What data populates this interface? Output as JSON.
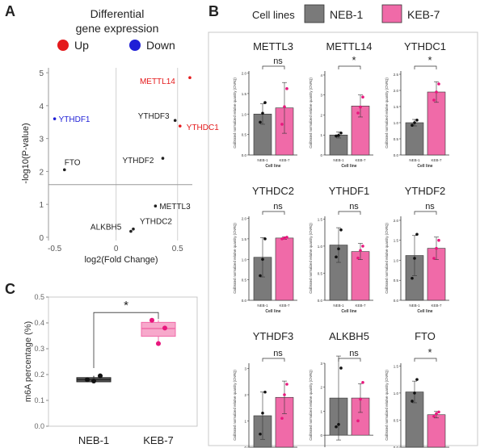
{
  "panels": {
    "A": "A",
    "B": "B",
    "C": "C"
  },
  "colors": {
    "up": "#e41a1c",
    "down": "#1f1fd6",
    "neb": "#7a7a7a",
    "keb": "#f06aa8",
    "keb_light": "#f7a8cb",
    "dot_keb": "#e8177d",
    "gray_box": "#6b6b6b"
  },
  "chart_data": [
    {
      "panel": "A",
      "type": "scatter",
      "title": "Differential gene expression",
      "legend": [
        {
          "label": "Up",
          "color": "#e41a1c"
        },
        {
          "label": "Down",
          "color": "#1f1fd6"
        }
      ],
      "xlabel": "log2(Fold Change)",
      "ylabel": "-log10(P-value)",
      "xticks": [
        -0.5,
        0,
        0.5
      ],
      "yticks": [
        0,
        1,
        2,
        3,
        4,
        5
      ],
      "xlim": [
        -0.55,
        0.62
      ],
      "ylim": [
        -0.1,
        5.15
      ],
      "axis_break": "y",
      "points": [
        {
          "label": "METTL14",
          "x": 0.6,
          "y": 4.85,
          "group": "up"
        },
        {
          "label": "YTHDC1",
          "x": 0.52,
          "y": 3.38,
          "group": "up"
        },
        {
          "label": "YTHDF1",
          "x": -0.5,
          "y": 3.6,
          "group": "down"
        },
        {
          "label": "YTHDF3",
          "x": 0.48,
          "y": 3.55,
          "group": "ns"
        },
        {
          "label": "YTHDF2",
          "x": 0.38,
          "y": 2.4,
          "group": "ns"
        },
        {
          "label": "FTO",
          "x": -0.42,
          "y": 2.05,
          "group": "ns"
        },
        {
          "label": "METTL3",
          "x": 0.32,
          "y": 0.95,
          "group": "ns"
        },
        {
          "label": "ALKBH5",
          "x": 0.12,
          "y": 0.18,
          "group": "ns"
        },
        {
          "label": "YTHDC2",
          "x": 0.14,
          "y": 0.25,
          "group": "ns"
        }
      ]
    },
    {
      "panel": "B",
      "type": "bar",
      "legend_title": "Cell lines",
      "series": [
        {
          "name": "NEB-1",
          "color": "#7a7a7a"
        },
        {
          "name": "KEB-7",
          "color": "#f06aa8"
        }
      ],
      "xlabel": "Cell line",
      "ylabel": "Calibrated normalized relative quantity (CNRQ)",
      "categories": [
        "NEB-1",
        "KEB-7"
      ],
      "subplots": [
        {
          "title": "METTL3",
          "ymax": 2.05,
          "yticks": [
            "0.0",
            "0.5",
            "1.0",
            "1.5",
            "2.0"
          ],
          "values": [
            1.0,
            1.15
          ],
          "sd": [
            0.25,
            0.62
          ],
          "points": [
            [
              0.8,
              1.02,
              1.28
            ],
            [
              0.75,
              1.18,
              1.62
            ]
          ],
          "sig": "ns"
        },
        {
          "title": "METTL14",
          "ymax": 4.2,
          "yticks": [
            "0",
            "1",
            "2",
            "3",
            "4"
          ],
          "values": [
            1.0,
            2.45
          ],
          "sd": [
            0.15,
            0.55
          ],
          "points": [
            [
              0.95,
              0.98,
              1.1
            ],
            [
              2.1,
              2.4,
              2.9
            ]
          ],
          "sig": "*"
        },
        {
          "title": "YTHDC1",
          "ymax": 2.6,
          "yticks": [
            "0.0",
            "0.5",
            "1.0",
            "1.5",
            "2.0",
            "2.5"
          ],
          "values": [
            1.0,
            1.95
          ],
          "sd": [
            0.1,
            0.32
          ],
          "points": [
            [
              0.92,
              1.0,
              1.08
            ],
            [
              1.7,
              1.95,
              2.2
            ]
          ],
          "sig": "*"
        },
        {
          "title": "YTHDC2",
          "ymax": 2.05,
          "yticks": [
            "0.0",
            "0.5",
            "1.0",
            "1.5",
            "2.0"
          ],
          "values": [
            1.05,
            1.52
          ],
          "sd": [
            0.48,
            0.03
          ],
          "points": [
            [
              0.6,
              1.0,
              1.5
            ],
            [
              1.5,
              1.52,
              1.54
            ]
          ],
          "sig": "ns"
        },
        {
          "title": "YTHDF1",
          "ymax": 1.55,
          "yticks": [
            "0.0",
            "0.5",
            "1.0",
            "1.5"
          ],
          "values": [
            1.02,
            0.9
          ],
          "sd": [
            0.32,
            0.15
          ],
          "points": [
            [
              0.8,
              0.95,
              1.3
            ],
            [
              0.78,
              0.92,
              1.0
            ]
          ],
          "sig": "ns"
        },
        {
          "title": "YTHDF2",
          "ymax": 2.1,
          "yticks": [
            "0.0",
            "0.5",
            "1.0",
            "1.5",
            "2.0"
          ],
          "values": [
            1.12,
            1.3
          ],
          "sd": [
            0.5,
            0.28
          ],
          "points": [
            [
              0.55,
              1.05,
              1.65
            ],
            [
              1.05,
              1.3,
              1.5
            ]
          ],
          "sig": "ns"
        },
        {
          "title": "YTHDF3",
          "ymax": 3.2,
          "yticks": [
            "0",
            "1",
            "2",
            "3"
          ],
          "values": [
            1.2,
            1.9
          ],
          "sd": [
            0.9,
            0.62
          ],
          "points": [
            [
              0.5,
              1.3,
              2.1
            ],
            [
              1.1,
              2.0,
              2.4
            ]
          ],
          "sig": "ns"
        },
        {
          "title": "ALKBH5",
          "ymax": 3.0,
          "ymin": -0.5,
          "yticks": [
            "0",
            "1",
            "2",
            "3"
          ],
          "values": [
            1.55,
            1.55
          ],
          "sd": [
            1.75,
            0.6
          ],
          "points": [
            [
              0.35,
              0.45,
              2.8
            ],
            [
              0.6,
              1.5,
              2.2
            ]
          ],
          "sig": "ns"
        },
        {
          "title": "FTO",
          "ymax": 1.55,
          "yticks": [
            "0.0",
            "0.5",
            "1.0",
            "1.5"
          ],
          "values": [
            1.02,
            0.6
          ],
          "sd": [
            0.2,
            0.06
          ],
          "points": [
            [
              0.85,
              1.0,
              1.25
            ],
            [
              0.57,
              0.62,
              0.65
            ]
          ],
          "sig": "*"
        }
      ]
    },
    {
      "panel": "C",
      "type": "box",
      "ylabel": "m6A percentage (%)",
      "categories": [
        "NEB-1",
        "KEB-7"
      ],
      "yticks": [
        "0.0",
        "0.1",
        "0.2",
        "0.3",
        "0.4",
        "0.5"
      ],
      "ylim": [
        0,
        0.5
      ],
      "boxes": [
        {
          "name": "NEB-1",
          "q1": 0.172,
          "median": 0.18,
          "q3": 0.188,
          "min": 0.17,
          "max": 0.195,
          "points": [
            0.18,
            0.195,
            0.175
          ]
        },
        {
          "name": "KEB-7",
          "q1": 0.348,
          "median": 0.378,
          "q3": 0.402,
          "min": 0.32,
          "max": 0.41,
          "points": [
            0.41,
            0.38,
            0.32
          ]
        }
      ],
      "sig": "*"
    }
  ]
}
